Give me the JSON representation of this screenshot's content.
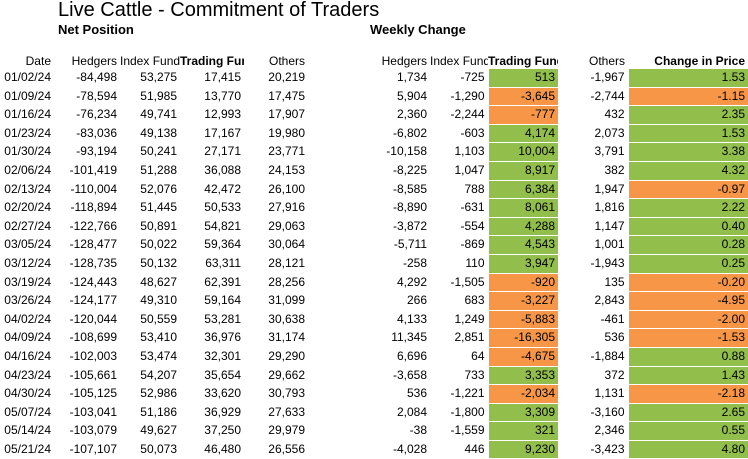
{
  "title": "Live Cattle - Commitment of Traders",
  "sections": {
    "net_position": "Net Position",
    "weekly_change": "Weekly Change"
  },
  "columns": [
    "Date",
    "Hedgers",
    "Index Funds",
    "Trading Funds",
    "Others",
    "Hedgers",
    "Index Funds",
    "Trading Funds",
    "Others",
    "Change in Price"
  ],
  "highlight_colors": {
    "positive": "#92BE4B",
    "negative": "#F79646"
  },
  "rows": [
    {
      "date": "01/02/24",
      "net": [
        "-84,498",
        "53,275",
        "17,415",
        "20,219"
      ],
      "chg": [
        "1,734",
        "-725",
        "513",
        "-1,967"
      ],
      "price": "1.53"
    },
    {
      "date": "01/09/24",
      "net": [
        "-78,594",
        "51,985",
        "13,770",
        "17,475"
      ],
      "chg": [
        "5,904",
        "-1,290",
        "-3,645",
        "-2,744"
      ],
      "price": "-1.15"
    },
    {
      "date": "01/16/24",
      "net": [
        "-76,234",
        "49,741",
        "12,993",
        "17,907"
      ],
      "chg": [
        "2,360",
        "-2,244",
        "-777",
        "432"
      ],
      "price": "2.35"
    },
    {
      "date": "01/23/24",
      "net": [
        "-83,036",
        "49,138",
        "17,167",
        "19,980"
      ],
      "chg": [
        "-6,802",
        "-603",
        "4,174",
        "2,073"
      ],
      "price": "1.53"
    },
    {
      "date": "01/30/24",
      "net": [
        "-93,194",
        "50,241",
        "27,171",
        "23,771"
      ],
      "chg": [
        "-10,158",
        "1,103",
        "10,004",
        "3,791"
      ],
      "price": "3.38"
    },
    {
      "date": "02/06/24",
      "net": [
        "-101,419",
        "51,288",
        "36,088",
        "24,153"
      ],
      "chg": [
        "-8,225",
        "1,047",
        "8,917",
        "382"
      ],
      "price": "4.32"
    },
    {
      "date": "02/13/24",
      "net": [
        "-110,004",
        "52,076",
        "42,472",
        "26,100"
      ],
      "chg": [
        "-8,585",
        "788",
        "6,384",
        "1,947"
      ],
      "price": "-0.97"
    },
    {
      "date": "02/20/24",
      "net": [
        "-118,894",
        "51,445",
        "50,533",
        "27,916"
      ],
      "chg": [
        "-8,890",
        "-631",
        "8,061",
        "1,816"
      ],
      "price": "2.22"
    },
    {
      "date": "02/27/24",
      "net": [
        "-122,766",
        "50,891",
        "54,821",
        "29,063"
      ],
      "chg": [
        "-3,872",
        "-554",
        "4,288",
        "1,147"
      ],
      "price": "0.40"
    },
    {
      "date": "03/05/24",
      "net": [
        "-128,477",
        "50,022",
        "59,364",
        "30,064"
      ],
      "chg": [
        "-5,711",
        "-869",
        "4,543",
        "1,001"
      ],
      "price": "0.28"
    },
    {
      "date": "03/12/24",
      "net": [
        "-128,735",
        "50,132",
        "63,311",
        "28,121"
      ],
      "chg": [
        "-258",
        "110",
        "3,947",
        "-1,943"
      ],
      "price": "0.25"
    },
    {
      "date": "03/19/24",
      "net": [
        "-124,443",
        "48,627",
        "62,391",
        "28,256"
      ],
      "chg": [
        "4,292",
        "-1,505",
        "-920",
        "135"
      ],
      "price": "-0.20"
    },
    {
      "date": "03/26/24",
      "net": [
        "-124,177",
        "49,310",
        "59,164",
        "31,099"
      ],
      "chg": [
        "266",
        "683",
        "-3,227",
        "2,843"
      ],
      "price": "-4.95"
    },
    {
      "date": "04/02/24",
      "net": [
        "-120,044",
        "50,559",
        "53,281",
        "30,638"
      ],
      "chg": [
        "4,133",
        "1,249",
        "-5,883",
        "-461"
      ],
      "price": "-2.00"
    },
    {
      "date": "04/09/24",
      "net": [
        "-108,699",
        "53,410",
        "36,976",
        "31,174"
      ],
      "chg": [
        "11,345",
        "2,851",
        "-16,305",
        "536"
      ],
      "price": "-1.53"
    },
    {
      "date": "04/16/24",
      "net": [
        "-102,003",
        "53,474",
        "32,301",
        "29,290"
      ],
      "chg": [
        "6,696",
        "64",
        "-4,675",
        "-1,884"
      ],
      "price": "0.88"
    },
    {
      "date": "04/23/24",
      "net": [
        "-105,661",
        "54,207",
        "35,654",
        "29,662"
      ],
      "chg": [
        "-3,658",
        "733",
        "3,353",
        "372"
      ],
      "price": "1.43"
    },
    {
      "date": "04/30/24",
      "net": [
        "-105,125",
        "52,986",
        "33,620",
        "30,793"
      ],
      "chg": [
        "536",
        "-1,221",
        "-2,034",
        "1,131"
      ],
      "price": "-2.18"
    },
    {
      "date": "05/07/24",
      "net": [
        "-103,041",
        "51,186",
        "36,929",
        "27,633"
      ],
      "chg": [
        "2,084",
        "-1,800",
        "3,309",
        "-3,160"
      ],
      "price": "2.65"
    },
    {
      "date": "05/14/24",
      "net": [
        "-103,079",
        "49,627",
        "37,250",
        "29,979"
      ],
      "chg": [
        "-38",
        "-1,559",
        "321",
        "2,346"
      ],
      "price": "0.55"
    },
    {
      "date": "05/21/24",
      "net": [
        "-107,107",
        "50,073",
        "46,480",
        "26,556"
      ],
      "chg": [
        "-4,028",
        "446",
        "9,230",
        "-3,423"
      ],
      "price": "4.80"
    }
  ]
}
